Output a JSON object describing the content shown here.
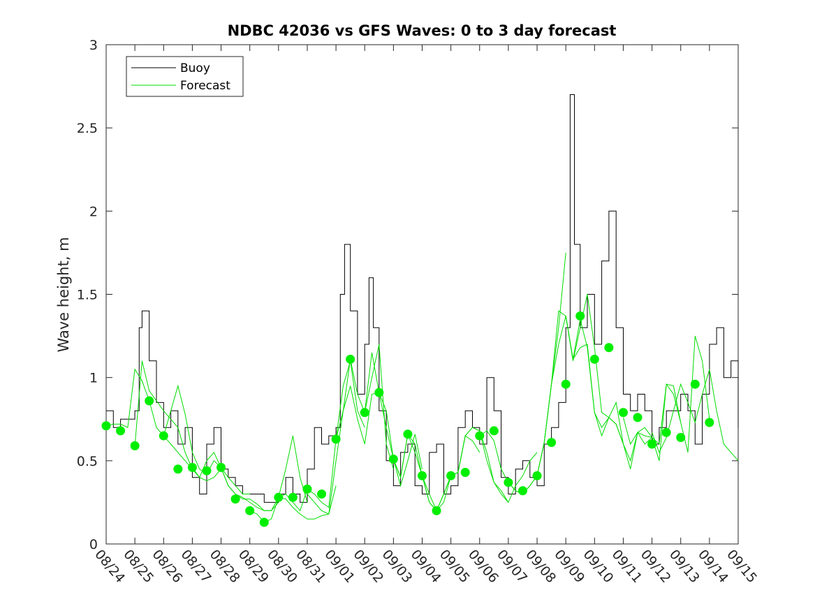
{
  "chart_data": {
    "type": "line",
    "title": "NDBC 42036 vs GFS Waves: 0 to 3 day forecast",
    "xlabel": "",
    "ylabel": "Wave height, m",
    "xlim": [
      0,
      22
    ],
    "ylim": [
      0,
      3
    ],
    "yticks": [
      0,
      0.5,
      1,
      1.5,
      2,
      2.5,
      3
    ],
    "ytick_labels": [
      "0",
      "0.5",
      "1",
      "1.5",
      "2",
      "2.5",
      "3"
    ],
    "xtick_labels": [
      "08/24",
      "08/25",
      "08/26",
      "08/27",
      "08/28",
      "08/29",
      "08/30",
      "08/31",
      "09/01",
      "09/02",
      "09/03",
      "09/04",
      "09/05",
      "09/06",
      "09/07",
      "09/08",
      "09/09",
      "09/10",
      "09/11",
      "09/12",
      "09/13",
      "09/14",
      "09/15"
    ],
    "legend": {
      "position": "top-left",
      "entries": [
        {
          "label": "Buoy",
          "color": "#000000"
        },
        {
          "label": "Forecast",
          "color": "#00dd00"
        }
      ]
    },
    "colors": {
      "buoy": "#000000",
      "forecast": "#00dd00",
      "markers": "#00ee00"
    },
    "buoy": {
      "x": [
        0,
        0.25,
        0.5,
        0.75,
        1,
        1.15,
        1.25,
        1.5,
        1.75,
        2,
        2.25,
        2.5,
        2.75,
        3,
        3.25,
        3.5,
        3.75,
        4,
        4.25,
        4.5,
        4.75,
        5,
        5.25,
        5.5,
        5.75,
        6,
        6.25,
        6.5,
        6.75,
        7,
        7.25,
        7.5,
        7.75,
        8,
        8.15,
        8.3,
        8.5,
        8.75,
        9,
        9.15,
        9.3,
        9.5,
        9.75,
        10,
        10.25,
        10.5,
        10.75,
        11,
        11.25,
        11.5,
        11.75,
        12,
        12.25,
        12.5,
        12.75,
        13,
        13.25,
        13.5,
        13.75,
        14,
        14.25,
        14.5,
        14.75,
        15,
        15.25,
        15.5,
        15.75,
        16,
        16.15,
        16.3,
        16.5,
        16.75,
        17,
        17.25,
        17.5,
        17.75,
        18,
        18.25,
        18.5,
        18.75,
        19,
        19.25,
        19.5,
        19.75,
        20,
        20.25,
        20.5,
        20.75,
        21,
        21.25,
        21.5,
        21.75,
        22
      ],
      "y": [
        0.8,
        0.7,
        0.75,
        0.75,
        0.8,
        1.3,
        1.4,
        1.1,
        0.85,
        0.7,
        0.8,
        0.6,
        0.7,
        0.4,
        0.3,
        0.6,
        0.7,
        0.45,
        0.4,
        0.35,
        0.3,
        0.3,
        0.3,
        0.25,
        0.25,
        0.3,
        0.4,
        0.3,
        0.25,
        0.45,
        0.7,
        0.6,
        0.65,
        0.7,
        1.5,
        1.8,
        1.4,
        0.9,
        1.2,
        1.6,
        1.3,
        0.8,
        0.5,
        0.35,
        0.55,
        0.6,
        0.35,
        0.3,
        0.55,
        0.6,
        0.3,
        0.35,
        0.7,
        0.8,
        0.7,
        0.6,
        1.0,
        0.8,
        0.4,
        0.3,
        0.45,
        0.5,
        0.4,
        0.35,
        0.6,
        0.7,
        0.85,
        1.3,
        2.7,
        1.8,
        1.3,
        1.5,
        1.2,
        1.7,
        2.0,
        1.3,
        0.9,
        0.8,
        0.9,
        0.8,
        0.6,
        0.7,
        0.8,
        0.8,
        0.9,
        0.8,
        0.6,
        0.9,
        1.2,
        1.3,
        1.0,
        1.1,
        0.7
      ]
    },
    "forecast_runs": [
      {
        "x": [
          0,
          0.25,
          0.5,
          0.75,
          1,
          1.25,
          1.5,
          1.75,
          2,
          2.25,
          2.5,
          2.75,
          3
        ],
        "y": [
          0.71,
          0.72,
          0.72,
          0.7,
          1.05,
          0.98,
          0.86,
          0.7,
          0.65,
          0.6,
          0.55,
          0.5,
          0.45
        ]
      },
      {
        "x": [
          1,
          1.25,
          1.5,
          1.75,
          2,
          2.25,
          2.5,
          2.75,
          3,
          3.25,
          3.5,
          3.75,
          4
        ],
        "y": [
          0.59,
          1.1,
          0.92,
          0.86,
          0.8,
          0.75,
          0.7,
          0.55,
          0.45,
          0.4,
          0.38,
          0.4,
          0.45
        ]
      },
      {
        "x": [
          2,
          2.25,
          2.5,
          2.75,
          3,
          3.25,
          3.5,
          3.75,
          4,
          4.25,
          4.5,
          4.75,
          5
        ],
        "y": [
          0.65,
          0.8,
          0.95,
          0.78,
          0.55,
          0.45,
          0.42,
          0.5,
          0.46,
          0.4,
          0.35,
          0.3,
          0.3
        ]
      },
      {
        "x": [
          3,
          3.25,
          3.5,
          3.75,
          4,
          4.25,
          4.5,
          4.75,
          5,
          5.25,
          5.5,
          5.75,
          6
        ],
        "y": [
          0.46,
          0.4,
          0.5,
          0.55,
          0.46,
          0.35,
          0.3,
          0.28,
          0.25,
          0.22,
          0.2,
          0.2,
          0.25
        ]
      },
      {
        "x": [
          4,
          4.25,
          4.5,
          4.75,
          5,
          5.25,
          5.5,
          5.75,
          6,
          6.25,
          6.5,
          6.75,
          7
        ],
        "y": [
          0.46,
          0.35,
          0.3,
          0.27,
          0.27,
          0.24,
          0.2,
          0.2,
          0.28,
          0.45,
          0.65,
          0.4,
          0.25
        ]
      },
      {
        "x": [
          5,
          5.25,
          5.5,
          5.75,
          6,
          6.25,
          6.5,
          6.75,
          7,
          7.25,
          7.5,
          7.75,
          8
        ],
        "y": [
          0.2,
          0.18,
          0.13,
          0.15,
          0.28,
          0.27,
          0.22,
          0.18,
          0.15,
          0.15,
          0.17,
          0.18,
          0.35
        ]
      },
      {
        "x": [
          6,
          6.25,
          6.5,
          6.75,
          7,
          7.25,
          7.5,
          7.75,
          8,
          8.25,
          8.5,
          8.75,
          9
        ],
        "y": [
          0.28,
          0.3,
          0.25,
          0.2,
          0.33,
          0.3,
          0.25,
          0.22,
          0.63,
          0.95,
          1.1,
          0.8,
          0.7
        ]
      },
      {
        "x": [
          7,
          7.25,
          7.5,
          7.75,
          8,
          8.25,
          8.5,
          8.75,
          9,
          9.25,
          9.5,
          9.75,
          10
        ],
        "y": [
          0.3,
          0.25,
          0.2,
          0.18,
          0.5,
          0.8,
          1.11,
          0.9,
          0.79,
          1.0,
          1.2,
          0.6,
          0.45
        ]
      },
      {
        "x": [
          8,
          8.25,
          8.5,
          8.75,
          9,
          9.25,
          9.5,
          9.75,
          10,
          10.25,
          10.5,
          10.75,
          11
        ],
        "y": [
          0.63,
          0.8,
          0.95,
          0.75,
          0.6,
          0.9,
          0.91,
          0.7,
          0.51,
          0.35,
          0.5,
          0.66,
          0.45
        ]
      },
      {
        "x": [
          9,
          9.25,
          9.5,
          9.75,
          10,
          10.25,
          10.5,
          10.75,
          11,
          11.25,
          11.5,
          11.75,
          12
        ],
        "y": [
          0.79,
          1.15,
          0.91,
          0.8,
          0.51,
          0.4,
          0.66,
          0.55,
          0.41,
          0.25,
          0.2,
          0.3,
          0.41
        ]
      },
      {
        "x": [
          10,
          10.25,
          10.5,
          10.75,
          11,
          11.25,
          11.5,
          11.75,
          12,
          12.25,
          12.5,
          12.75,
          13
        ],
        "y": [
          0.51,
          0.4,
          0.66,
          0.6,
          0.41,
          0.25,
          0.2,
          0.3,
          0.41,
          0.43,
          0.65,
          0.62,
          0.55
        ]
      },
      {
        "x": [
          11,
          11.25,
          11.5,
          11.75,
          12,
          12.25,
          12.5,
          12.75,
          13,
          13.25,
          13.5,
          13.75,
          14
        ],
        "y": [
          0.41,
          0.3,
          0.2,
          0.25,
          0.41,
          0.43,
          0.65,
          0.7,
          0.68,
          0.5,
          0.37,
          0.3,
          0.25
        ]
      },
      {
        "x": [
          12,
          12.25,
          12.5,
          12.75,
          13,
          13.25,
          13.5,
          13.75,
          14,
          14.25,
          14.5,
          14.75,
          15
        ],
        "y": [
          0.41,
          0.43,
          0.65,
          0.7,
          0.68,
          0.55,
          0.37,
          0.32,
          0.25,
          0.35,
          0.41,
          0.5,
          0.55
        ]
      },
      {
        "x": [
          13,
          13.25,
          13.5,
          13.75,
          14,
          14.25,
          14.5,
          14.75,
          15,
          15.25,
          15.5,
          15.75,
          16
        ],
        "y": [
          0.65,
          0.68,
          0.62,
          0.45,
          0.37,
          0.32,
          0.3,
          0.35,
          0.41,
          0.61,
          0.96,
          1.3,
          1.75
        ]
      },
      {
        "x": [
          14,
          14.25,
          14.5,
          14.75,
          15,
          15.25,
          15.5,
          15.75,
          16,
          16.25,
          16.5,
          16.75,
          17
        ],
        "y": [
          0.37,
          0.32,
          0.3,
          0.35,
          0.41,
          0.61,
          0.96,
          1.2,
          1.37,
          1.1,
          1.3,
          1.5,
          1.18
        ]
      },
      {
        "x": [
          15,
          15.25,
          15.5,
          15.75,
          16,
          16.25,
          16.5,
          16.75,
          17,
          17.25,
          17.5,
          17.75,
          18
        ],
        "y": [
          0.41,
          0.61,
          0.96,
          1.4,
          1.37,
          1.11,
          1.35,
          1.18,
          0.79,
          0.7,
          0.76,
          0.72,
          0.6
        ]
      },
      {
        "x": [
          16,
          16.25,
          16.5,
          16.75,
          17,
          17.25,
          17.5,
          17.75,
          18,
          18.25,
          18.5,
          18.75,
          19
        ],
        "y": [
          1.37,
          1.11,
          1.18,
          1.2,
          0.79,
          0.65,
          0.76,
          0.72,
          0.6,
          0.5,
          0.67,
          0.6,
          0.64
        ]
      },
      {
        "x": [
          17,
          17.25,
          17.5,
          17.75,
          18,
          18.25,
          18.5,
          18.75,
          19,
          19.25,
          19.5,
          19.75,
          20
        ],
        "y": [
          1.18,
          0.79,
          0.76,
          0.85,
          0.6,
          0.45,
          0.67,
          0.65,
          0.64,
          0.6,
          0.96,
          0.9,
          0.73
        ]
      },
      {
        "x": [
          18,
          18.25,
          18.5,
          18.75,
          19,
          19.25,
          19.5,
          19.75,
          20,
          20.25,
          20.5,
          20.75,
          21
        ],
        "y": [
          0.76,
          0.6,
          0.67,
          0.7,
          0.64,
          0.5,
          0.96,
          0.95,
          0.73,
          0.55,
          1.25,
          1.1,
          0.75
        ]
      },
      {
        "x": [
          19,
          19.25,
          19.5,
          19.75,
          20,
          20.25,
          20.5,
          20.75,
          21,
          21.25,
          21.5,
          21.75,
          22
        ],
        "y": [
          0.67,
          0.55,
          0.64,
          0.8,
          0.96,
          0.85,
          0.73,
          0.9,
          1.05,
          0.8,
          0.6,
          0.55,
          0.5
        ]
      }
    ],
    "markers": {
      "x": [
        0,
        0.5,
        1,
        1.5,
        2,
        2.5,
        3,
        3.5,
        4,
        4.5,
        5,
        5.5,
        6,
        6.5,
        7,
        7.5,
        8,
        8.5,
        9,
        9.5,
        10,
        10.5,
        11,
        11.5,
        12,
        12.5,
        13,
        13.5,
        14,
        14.5,
        15,
        15.5,
        16,
        16.5,
        17,
        17.5,
        18,
        18.5,
        19,
        19.5,
        20,
        20.5,
        21
      ],
      "y": [
        0.71,
        0.68,
        0.59,
        0.86,
        0.65,
        0.45,
        0.46,
        0.44,
        0.46,
        0.27,
        0.2,
        0.13,
        0.28,
        0.28,
        0.33,
        0.3,
        0.63,
        1.11,
        0.79,
        0.91,
        0.51,
        0.66,
        0.41,
        0.2,
        0.41,
        0.43,
        0.65,
        0.68,
        0.37,
        0.32,
        0.41,
        0.61,
        0.96,
        1.37,
        1.11,
        1.18,
        0.79,
        0.76,
        0.6,
        0.67,
        0.64,
        0.96,
        0.73
      ]
    }
  }
}
